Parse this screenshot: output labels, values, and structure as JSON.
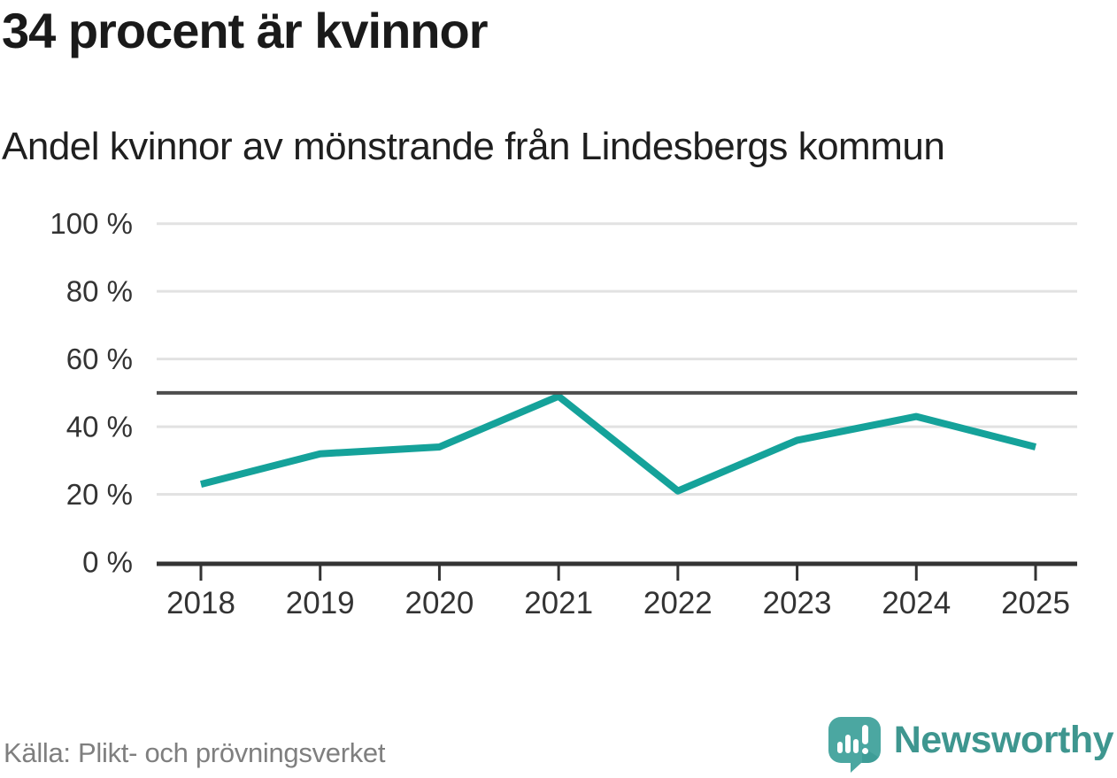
{
  "header": {
    "title": "34 procent är kvinnor",
    "subtitle": "Andel kvinnor av mönstrande från Lindesbergs kommun"
  },
  "chart_data": {
    "type": "line",
    "title": "34 procent är kvinnor",
    "subtitle": "Andel kvinnor av mönstrande från Lindesbergs kommun",
    "x": [
      2018,
      2019,
      2020,
      2021,
      2022,
      2023,
      2024,
      2025
    ],
    "series": [
      {
        "name": "Andel kvinnor av mönstrande",
        "values": [
          23,
          32,
          34,
          49,
          21,
          36,
          43,
          34
        ]
      }
    ],
    "xlabel": "",
    "ylabel": "",
    "ylim": [
      0,
      100
    ],
    "yticks": [
      0,
      20,
      40,
      60,
      80,
      100
    ],
    "ytick_labels": [
      "0 %",
      "20 %",
      "40 %",
      "60 %",
      "80 %",
      "100 %"
    ],
    "grid": true,
    "legend_position": "none",
    "reference_line": {
      "value": 50
    }
  },
  "colors": {
    "line": "#15a29a",
    "grid": "#e2e2e2",
    "reference": "#4d4d4d",
    "axis": "#333333",
    "axis_text": "#333333",
    "title_text": "#1a1a1a",
    "source_text": "#7f7f7f",
    "logo_bubble": "#4ba7a1",
    "logo_bubble_shadow": "#35968f",
    "logo_text": "#3e968f"
  },
  "footer": {
    "source": "Källa: Plikt- och prövningsverket",
    "brand": "Newsworthy"
  }
}
